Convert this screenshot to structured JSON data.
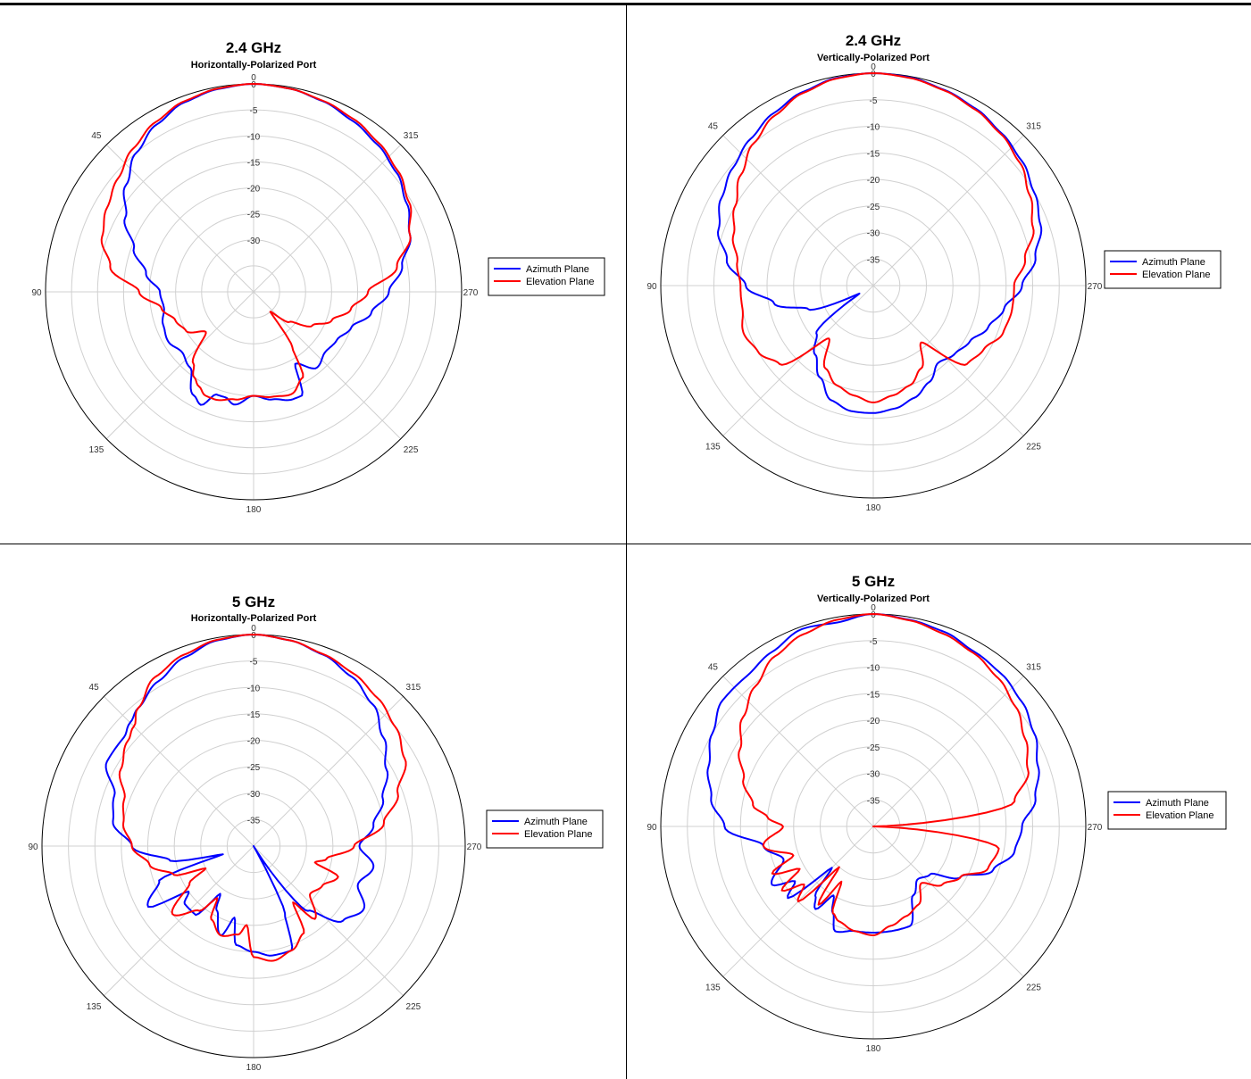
{
  "chart_data": [
    {
      "type": "polar-line",
      "title": "2.4 GHz",
      "subtitle": "Horizontally-Polarized Port",
      "rlim": [
        -40,
        0
      ],
      "r_ticks": [
        "0",
        "-5",
        "-10",
        "-15",
        "-20",
        "-25",
        "-30"
      ],
      "angle_labels": [
        "0",
        "45",
        "90",
        "135",
        "180",
        "225",
        "270",
        "315"
      ],
      "grid": true,
      "legend": "right",
      "series": [
        {
          "name": "Azimuth Plane",
          "color": "#0000ff",
          "angles": [
            0,
            10,
            20,
            30,
            40,
            50,
            60,
            70,
            80,
            90,
            100,
            110,
            120,
            130,
            140,
            150,
            155,
            160,
            165,
            170,
            180,
            190,
            200,
            205,
            210,
            220,
            230,
            240,
            250,
            260,
            270,
            280,
            290,
            300,
            310,
            320,
            330,
            340,
            350,
            360
          ],
          "values": [
            0,
            -0.4,
            -1.2,
            -2.8,
            -5,
            -8,
            -11.5,
            -15.5,
            -19,
            -22,
            -22.5,
            -21.5,
            -21,
            -22,
            -21,
            -17,
            -16,
            -19,
            -19,
            -18,
            -20,
            -19,
            -18,
            -18,
            -24,
            -21,
            -22,
            -21.5,
            -20,
            -17,
            -14,
            -11,
            -8,
            -6,
            -4.2,
            -3,
            -2,
            -1,
            -0.3,
            0
          ]
        },
        {
          "name": "Elevation Plane",
          "color": "#ff0000",
          "angles": [
            0,
            10,
            20,
            30,
            40,
            50,
            60,
            70,
            80,
            90,
            100,
            110,
            120,
            130,
            140,
            145,
            150,
            155,
            160,
            170,
            180,
            190,
            200,
            210,
            215,
            220,
            230,
            240,
            250,
            260,
            270,
            280,
            290,
            300,
            310,
            320,
            330,
            340,
            350,
            360
          ],
          "values": [
            0,
            -0.3,
            -1,
            -2.3,
            -4,
            -6,
            -7.5,
            -9,
            -12,
            -18,
            -22,
            -24,
            -25,
            -28,
            -22,
            -20,
            -19,
            -18,
            -18,
            -19,
            -20,
            -19.5,
            -19,
            -21,
            -27,
            -35,
            -31,
            -27,
            -24,
            -21,
            -18,
            -12,
            -8,
            -5.5,
            -3.8,
            -2.6,
            -1.6,
            -0.9,
            -0.3,
            0
          ]
        }
      ]
    },
    {
      "type": "polar-line",
      "title": "2.4 GHz",
      "subtitle": "Vertically-Polarized Port",
      "rlim": [
        -40,
        0
      ],
      "r_ticks": [
        "0",
        "-5",
        "-10",
        "-15",
        "-20",
        "-25",
        "-30",
        "-35"
      ],
      "angle_labels": [
        "0",
        "45",
        "90",
        "135",
        "180",
        "225",
        "270",
        "315"
      ],
      "grid": true,
      "legend": "right",
      "series": [
        {
          "name": "Azimuth Plane",
          "color": "#0000ff",
          "angles": [
            0,
            10,
            20,
            30,
            40,
            50,
            60,
            70,
            80,
            90,
            100,
            110,
            120,
            130,
            140,
            150,
            160,
            170,
            180,
            190,
            200,
            210,
            220,
            230,
            240,
            250,
            260,
            270,
            280,
            290,
            300,
            310,
            320,
            330,
            340,
            350,
            360
          ],
          "values": [
            0,
            -0.3,
            -1.2,
            -2.5,
            -4,
            -5.5,
            -7,
            -9,
            -12,
            -16,
            -21,
            -27,
            -37,
            -26,
            -23,
            -20,
            -17,
            -16,
            -16,
            -16.5,
            -17.5,
            -19,
            -21,
            -20,
            -19,
            -17,
            -15,
            -12,
            -9,
            -6.5,
            -5,
            -3.5,
            -2.5,
            -1.5,
            -0.8,
            -0.2,
            0
          ]
        },
        {
          "name": "Elevation Plane",
          "color": "#ff0000",
          "angles": [
            0,
            10,
            20,
            30,
            40,
            50,
            60,
            70,
            80,
            90,
            100,
            110,
            120,
            130,
            140,
            150,
            160,
            170,
            180,
            190,
            200,
            210,
            220,
            230,
            240,
            250,
            260,
            270,
            280,
            290,
            300,
            310,
            320,
            330,
            340,
            350,
            360
          ],
          "values": [
            0,
            -0.4,
            -1.4,
            -3,
            -5,
            -7.5,
            -10,
            -12,
            -14,
            -15,
            -15,
            -14,
            -15,
            -17,
            -27,
            -22,
            -20,
            -19,
            -18,
            -19,
            -20,
            -22,
            -26,
            -17,
            -16,
            -14,
            -13.5,
            -13.5,
            -11,
            -8,
            -6,
            -4,
            -2.7,
            -1.7,
            -0.9,
            -0.3,
            0
          ]
        }
      ]
    },
    {
      "type": "polar-line",
      "title": "5 GHz",
      "subtitle": "Horizontally-Polarized Port",
      "rlim": [
        -40,
        0
      ],
      "r_ticks": [
        "0",
        "-5",
        "-10",
        "-15",
        "-20",
        "-25",
        "-30",
        "-35"
      ],
      "angle_labels": [
        "0",
        "45",
        "90",
        "135",
        "180",
        "225",
        "270",
        "315"
      ],
      "grid": true,
      "legend": "right",
      "series": [
        {
          "name": "Azimuth Plane",
          "color": "#0000ff",
          "angles": [
            0,
            10,
            20,
            30,
            40,
            45,
            50,
            60,
            70,
            80,
            90,
            100,
            105,
            110,
            120,
            125,
            130,
            140,
            145,
            150,
            160,
            165,
            170,
            180,
            190,
            200,
            205,
            210,
            220,
            230,
            240,
            250,
            260,
            270,
            280,
            290,
            300,
            310,
            320,
            330,
            340,
            350,
            360
          ],
          "values": [
            0,
            -0.5,
            -2,
            -4,
            -6,
            -7,
            -8,
            -8,
            -12,
            -13,
            -17,
            -24,
            -34,
            -21,
            -17,
            -25,
            -23,
            -23,
            -29,
            -26,
            -22,
            -26,
            -21,
            -20,
            -19,
            -19,
            -26,
            -40,
            -24,
            -18,
            -16,
            -19,
            -17,
            -20,
            -17,
            -14,
            -11,
            -8,
            -5,
            -3,
            -1.5,
            -0.5,
            0
          ]
        },
        {
          "name": "Elevation Plane",
          "color": "#ff0000",
          "angles": [
            0,
            10,
            20,
            30,
            40,
            45,
            50,
            60,
            70,
            80,
            90,
            100,
            110,
            115,
            120,
            130,
            140,
            145,
            150,
            160,
            170,
            175,
            180,
            190,
            200,
            210,
            215,
            220,
            230,
            240,
            250,
            255,
            260,
            270,
            280,
            290,
            300,
            310,
            320,
            330,
            340,
            350,
            360
          ],
          "values": [
            0,
            -0.4,
            -1.5,
            -3,
            -6,
            -8,
            -9,
            -11,
            -14,
            -15,
            -17,
            -20,
            -24,
            -30,
            -26,
            -20,
            -24,
            -28,
            -24,
            -22,
            -23,
            -25,
            -19,
            -18,
            -19,
            -21,
            -27,
            -22,
            -26,
            -25,
            -23,
            -28,
            -26,
            -21,
            -15,
            -11,
            -7,
            -5,
            -3.5,
            -2.3,
            -1.4,
            -0.5,
            0
          ]
        }
      ]
    },
    {
      "type": "polar-line",
      "title": "5 GHz",
      "subtitle": "Vertically-Polarized Port",
      "rlim": [
        -40,
        0
      ],
      "r_ticks": [
        "0",
        "-5",
        "-10",
        "-15",
        "-20",
        "-25",
        "-30",
        "-35"
      ],
      "angle_labels": [
        "0",
        "45",
        "90",
        "135",
        "180",
        "225",
        "270",
        "315"
      ],
      "grid": true,
      "legend": "right",
      "series": [
        {
          "name": "Azimuth Plane",
          "color": "#0000ff",
          "angles": [
            0,
            10,
            20,
            30,
            40,
            50,
            60,
            70,
            80,
            90,
            100,
            110,
            120,
            125,
            130,
            135,
            140,
            145,
            150,
            155,
            160,
            170,
            180,
            190,
            200,
            210,
            220,
            230,
            240,
            250,
            260,
            270,
            280,
            290,
            300,
            310,
            320,
            330,
            340,
            350,
            360
          ],
          "values": [
            0,
            -1,
            -0.5,
            -2,
            -3,
            -3,
            -5,
            -7,
            -9,
            -12,
            -19,
            -22,
            -18,
            -22,
            -19,
            -29,
            -23,
            -21,
            -25,
            -22,
            -19,
            -20,
            -20,
            -20,
            -20,
            -25,
            -27,
            -26,
            -21,
            -16,
            -13,
            -12,
            -9,
            -7,
            -5,
            -3.5,
            -2.5,
            -2,
            -1,
            -0.5,
            0
          ]
        },
        {
          "name": "Elevation Plane",
          "color": "#ff0000",
          "angles": [
            0,
            10,
            20,
            30,
            40,
            50,
            60,
            70,
            80,
            85,
            90,
            100,
            110,
            115,
            120,
            125,
            130,
            135,
            140,
            145,
            150,
            155,
            160,
            170,
            180,
            190,
            200,
            210,
            220,
            230,
            240,
            250,
            260,
            270,
            280,
            290,
            300,
            310,
            320,
            330,
            340,
            350,
            360
          ],
          "values": [
            0,
            -0.5,
            -1.5,
            -3,
            -5.5,
            -8,
            -11,
            -14,
            -17,
            -20,
            -23,
            -19,
            -24,
            -19,
            -24,
            -19,
            -23,
            -20,
            -30,
            -22,
            -28,
            -22,
            -21,
            -20,
            -19.5,
            -21,
            -22,
            -23,
            -26,
            -23,
            -21,
            -17,
            -16,
            -40,
            -13,
            -9,
            -7,
            -5,
            -3.5,
            -2.3,
            -1.4,
            -0.6,
            0
          ]
        }
      ]
    }
  ]
}
